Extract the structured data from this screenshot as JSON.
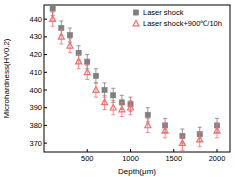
{
  "chart_data": {
    "type": "scatter",
    "x_label": "Depth(μm)",
    "y_label": "Microhardness(HV0.2)",
    "xlim": [
      0,
      2150
    ],
    "xticks": [
      500,
      1000,
      1500,
      2000
    ],
    "ylim": [
      365,
      448
    ],
    "yticks": [
      370,
      380,
      390,
      400,
      410,
      420,
      430,
      440
    ],
    "legend": "upper right",
    "grid": false,
    "series": [
      {
        "name": "Laser shock",
        "color": "#7f7f7f",
        "marker": "square",
        "x": [
          100,
          200,
          300,
          400,
          500,
          600,
          700,
          800,
          900,
          1000,
          1200,
          1400,
          1600,
          1800,
          2000
        ],
        "values": [
          446,
          435,
          431,
          421,
          416,
          408,
          400,
          397,
          393,
          392,
          386,
          380,
          374,
          375,
          380
        ],
        "errors": [
          4,
          4,
          4,
          4,
          4,
          4,
          4,
          4,
          4,
          4,
          4,
          4,
          4,
          4,
          4
        ]
      },
      {
        "name": "Laser shock+900℃/10h",
        "color": "#f07070",
        "marker": "triangle",
        "x": [
          100,
          200,
          300,
          400,
          500,
          600,
          700,
          800,
          900,
          1000,
          1200,
          1400,
          1600,
          1800,
          2000
        ],
        "values": [
          440,
          430,
          425,
          416,
          410,
          400,
          393,
          390,
          389,
          390,
          380,
          377,
          370,
          372,
          377
        ],
        "errors": [
          4,
          4,
          4,
          4,
          4,
          4,
          4,
          4,
          4,
          4,
          4,
          4,
          4,
          4,
          4
        ]
      }
    ]
  }
}
